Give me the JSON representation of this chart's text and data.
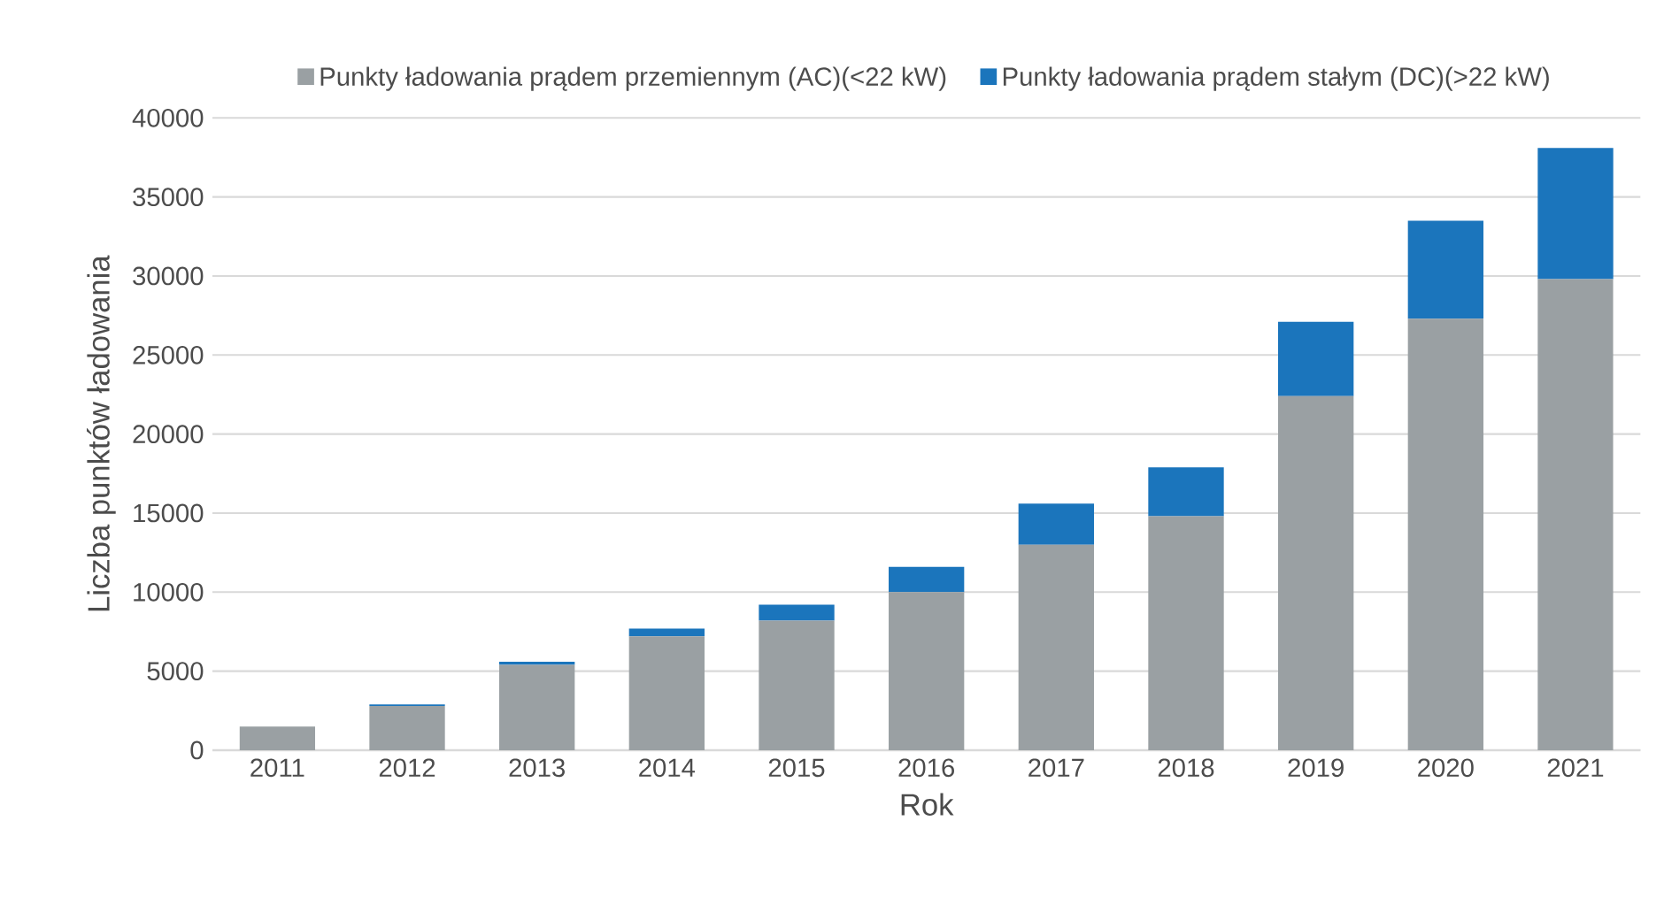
{
  "chart_data": {
    "type": "bar",
    "stacked": true,
    "xlabel": "Rok",
    "ylabel": "Liczba punktów ładowania",
    "categories": [
      "2011",
      "2012",
      "2013",
      "2014",
      "2015",
      "2016",
      "2017",
      "2018",
      "2019",
      "2020",
      "2021"
    ],
    "series": [
      {
        "name": "Punkty ładowania prądem przemiennym (AC)(<22 kW)",
        "color": "#9aa0a3",
        "values": [
          1500,
          2800,
          5400,
          7200,
          8200,
          10000,
          13000,
          14800,
          22400,
          27300,
          29800
        ]
      },
      {
        "name": "Punkty ładowania prądem stałym (DC)(>22 kW)",
        "color": "#1b75bc",
        "values": [
          0,
          100,
          200,
          500,
          1000,
          1600,
          2600,
          3100,
          4700,
          6200,
          8300
        ]
      }
    ],
    "ylim": [
      0,
      40000
    ],
    "yticks": [
      0,
      5000,
      10000,
      15000,
      20000,
      25000,
      30000,
      35000,
      40000
    ],
    "grid": "y",
    "legend": "top"
  }
}
